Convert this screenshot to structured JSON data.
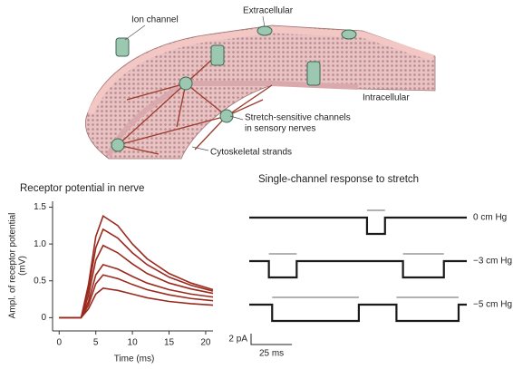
{
  "diagram": {
    "labels": [
      "Ion channel",
      "Extracellular",
      "Intracellular",
      "Stretch-sensitive channels",
      "in sensory nerves",
      "Cytoskeletal strands"
    ]
  },
  "chart_data": [
    {
      "type": "line",
      "title": "Receptor potential in nerve",
      "x_label": "Time (ms)",
      "y_label": [
        "Ampl. of receptor potential",
        "(mV)"
      ],
      "x": [
        0,
        3,
        4,
        5,
        6,
        8,
        10,
        12,
        15,
        18,
        21
      ],
      "color": "#9b2a1e",
      "series": [
        {
          "values": [
            0,
            0,
            0.45,
            1.1,
            1.38,
            1.25,
            1.0,
            0.8,
            0.6,
            0.47,
            0.38
          ]
        },
        {
          "values": [
            0,
            0,
            0.38,
            0.95,
            1.2,
            1.08,
            0.88,
            0.72,
            0.55,
            0.44,
            0.36
          ]
        },
        {
          "values": [
            0,
            0,
            0.3,
            0.78,
            0.98,
            0.88,
            0.73,
            0.6,
            0.47,
            0.39,
            0.33
          ]
        },
        {
          "values": [
            0,
            0,
            0.22,
            0.58,
            0.72,
            0.66,
            0.56,
            0.47,
            0.38,
            0.32,
            0.28
          ]
        },
        {
          "values": [
            0,
            0,
            0.17,
            0.46,
            0.58,
            0.53,
            0.45,
            0.38,
            0.31,
            0.26,
            0.23
          ]
        },
        {
          "values": [
            0,
            0,
            0.12,
            0.32,
            0.4,
            0.37,
            0.32,
            0.27,
            0.22,
            0.19,
            0.17
          ]
        }
      ],
      "xlim": [
        -0.9,
        21
      ],
      "ylim": [
        -0.18,
        1.58
      ],
      "xticks": [
        0,
        5,
        10,
        15,
        20
      ],
      "yticks": [
        0,
        0.5,
        {
          "value": 1,
          "label": "1.0"
        },
        1.5
      ]
    },
    {
      "type": "trace",
      "title": "Single-channel response to stretch",
      "color": "#1a1a1a",
      "xlim": [
        0,
        133
      ],
      "series": [
        {
          "name": "0 cm Hg",
          "x": [
            0,
            72,
            72,
            83,
            83,
            133
          ],
          "values": [
            0,
            0,
            -3,
            -3,
            0,
            0
          ]
        },
        {
          "name": "−3 cm Hg",
          "x": [
            0,
            12,
            12,
            29,
            29,
            94,
            94,
            119,
            119,
            133
          ],
          "values": [
            0,
            0,
            -3,
            -3,
            0,
            0,
            -3,
            -3,
            0,
            0
          ]
        },
        {
          "name": "−5 cm Hg",
          "x": [
            0,
            14,
            14,
            67,
            67,
            90,
            90,
            128,
            128,
            133
          ],
          "values": [
            0,
            0,
            -3,
            -3,
            0,
            0,
            -3,
            -3,
            0,
            0
          ]
        }
      ],
      "scale_bar": {
        "x": {
          "value": 25,
          "label": "25 ms"
        },
        "y": {
          "value": 2,
          "label": "2 pA"
        }
      }
    }
  ]
}
